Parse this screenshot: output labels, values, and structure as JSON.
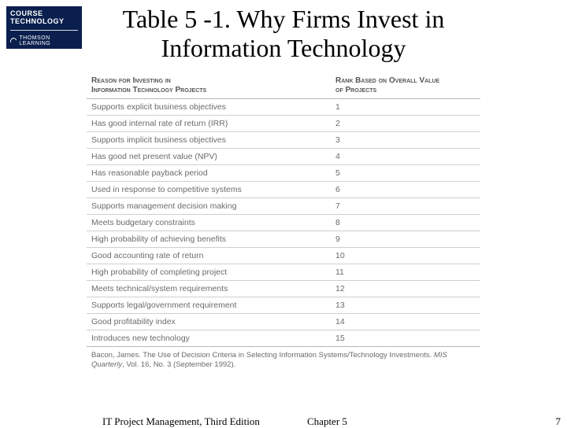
{
  "logo": {
    "top_line": "COURSE",
    "mid_line": "TECHNOLOGY",
    "bottom_line": "THOMSON LEARNING"
  },
  "title_line1": "Table 5 -1. Why Firms Invest in",
  "title_line2": "Information Technology",
  "table": {
    "header_col1_line1": "Reason for Investing in",
    "header_col1_line2": "Information Technology Projects",
    "header_col2_line1": "Rank Based on Overall Value",
    "header_col2_line2": "of Projects",
    "rows": [
      {
        "reason": "Supports explicit business objectives",
        "rank": "1"
      },
      {
        "reason": "Has good internal rate of return (IRR)",
        "rank": "2"
      },
      {
        "reason": "Supports implicit business objectives",
        "rank": "3"
      },
      {
        "reason": "Has good net present value (NPV)",
        "rank": "4"
      },
      {
        "reason": "Has reasonable payback period",
        "rank": "5"
      },
      {
        "reason": "Used in response to competitive systems",
        "rank": "6"
      },
      {
        "reason": "Supports management decision making",
        "rank": "7"
      },
      {
        "reason": "Meets budgetary constraints",
        "rank": "8"
      },
      {
        "reason": "High probability of achieving benefits",
        "rank": "9"
      },
      {
        "reason": "Good accounting rate of return",
        "rank": "10"
      },
      {
        "reason": "High probability of completing project",
        "rank": "11"
      },
      {
        "reason": "Meets technical/system requirements",
        "rank": "12"
      },
      {
        "reason": "Supports legal/government requirement",
        "rank": "13"
      },
      {
        "reason": "Good profitability index",
        "rank": "14"
      },
      {
        "reason": "Introduces new technology",
        "rank": "15"
      }
    ]
  },
  "citation": {
    "prefix": "Bacon, James. The Use of Decision Criteria in Selecting Information Systems/Technology Investments. ",
    "journal": "MIS Quarterly",
    "suffix": ", Vol. 16, No. 3 (September 1992)."
  },
  "footer": {
    "left": "IT Project Management, Third Edition",
    "mid": "Chapter 5",
    "page": "7"
  }
}
